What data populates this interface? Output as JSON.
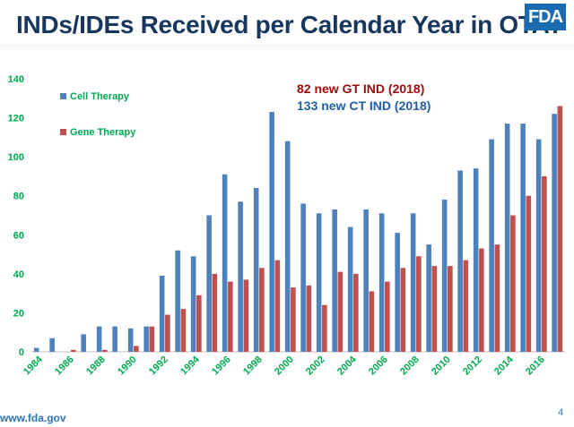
{
  "slide": {
    "title": "INDs/IDEs Received per Calendar Year in OTAT",
    "logo": "FDA",
    "footer_url": "www.fda.gov",
    "page_number": "4"
  },
  "colors": {
    "cell_therapy": "#4f81bd",
    "gene_therapy": "#c0504d",
    "axis_labels": "#00a84f",
    "annotation_gt": "#9c0b0b",
    "annotation_ct": "#1f5fa8",
    "title": "#17375e"
  },
  "chart_data": {
    "type": "bar",
    "categories": [
      "1984",
      "1985",
      "1986",
      "1987",
      "1988",
      "1989",
      "1990",
      "1991",
      "1992",
      "1993",
      "1994",
      "1995",
      "1996",
      "1997",
      "1998",
      "1999",
      "2000",
      "2001",
      "2002",
      "2003",
      "2004",
      "2005",
      "2006",
      "2007",
      "2008",
      "2009",
      "2010",
      "2011",
      "2012",
      "2013",
      "2014",
      "2015",
      "2016",
      "2017"
    ],
    "tick_labels": [
      "1984",
      "1986",
      "1988",
      "1990",
      "1992",
      "1994",
      "1996",
      "1998",
      "2000",
      "2002",
      "2004",
      "2006",
      "2008",
      "2010",
      "2012",
      "2014",
      "2016"
    ],
    "series": [
      {
        "name": "Cell Therapy",
        "color": "#4f81bd",
        "values": [
          2,
          7,
          0,
          9,
          13,
          13,
          12,
          13,
          39,
          52,
          49,
          70,
          91,
          77,
          84,
          123,
          108,
          76,
          71,
          73,
          64,
          73,
          71,
          61,
          71,
          55,
          78,
          93,
          94,
          109,
          117,
          117,
          109,
          122
        ]
      },
      {
        "name": "Gene Therapy",
        "color": "#c0504d",
        "values": [
          0,
          0,
          1,
          0,
          1,
          0,
          3,
          13,
          19,
          22,
          29,
          40,
          36,
          37,
          43,
          47,
          33,
          34,
          24,
          41,
          40,
          31,
          36,
          43,
          49,
          44,
          44,
          47,
          53,
          55,
          70,
          80,
          90,
          126
        ]
      }
    ],
    "ylim": [
      0,
      140
    ],
    "yticks": [
      0,
      20,
      40,
      60,
      80,
      100,
      120,
      140
    ],
    "grid": false,
    "legend_position": "top-left",
    "annotations": [
      "82  new GT IND (2018)",
      "133 new CT IND (2018)"
    ]
  }
}
